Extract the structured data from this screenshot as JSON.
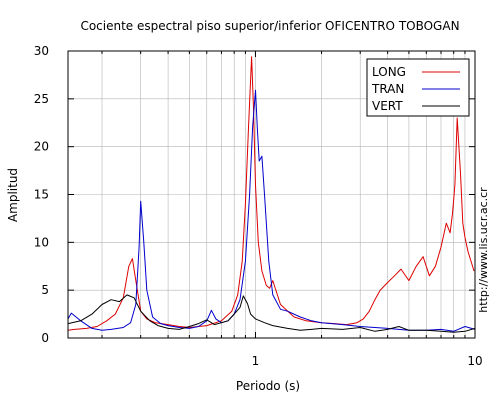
{
  "chart_data": {
    "type": "line",
    "title": "Cociente espectral piso superior/inferior OFICENTRO TOBOGAN",
    "xlabel": "Periodo (s)",
    "ylabel": "Amplitud",
    "x_scale": "log",
    "xlim": [
      0.14,
      10
    ],
    "ylim": [
      0,
      30
    ],
    "x_tick_labels": [
      {
        "value": 1,
        "label": "1"
      },
      {
        "value": 10,
        "label": "10"
      }
    ],
    "y_ticks": [
      0,
      5,
      10,
      15,
      20,
      25,
      30
    ],
    "grid": true,
    "legend_position": "top-right",
    "side_note": "http://www.lis.ucr.ac.cr",
    "series": [
      {
        "name": "LONG",
        "color": "#dd0000",
        "x": [
          0.14,
          0.15,
          0.17,
          0.19,
          0.21,
          0.23,
          0.25,
          0.265,
          0.275,
          0.285,
          0.3,
          0.32,
          0.35,
          0.4,
          0.45,
          0.5,
          0.6,
          0.7,
          0.78,
          0.83,
          0.87,
          0.9,
          0.93,
          0.96,
          0.98,
          1.0,
          1.03,
          1.07,
          1.12,
          1.16,
          1.2,
          1.3,
          1.5,
          1.7,
          2.0,
          2.3,
          2.6,
          2.9,
          3.1,
          3.3,
          3.5,
          3.7,
          4.0,
          4.3,
          4.6,
          5.0,
          5.4,
          5.8,
          6.2,
          6.6,
          7.0,
          7.4,
          7.7,
          7.9,
          8.1,
          8.3,
          8.45,
          8.6,
          8.8,
          9.0,
          9.3,
          9.6,
          9.9
        ],
        "y": [
          0.8,
          0.9,
          1.0,
          1.2,
          1.8,
          2.5,
          4.2,
          7.5,
          8.3,
          6.0,
          2.8,
          2.0,
          1.6,
          1.4,
          1.2,
          1.1,
          1.3,
          1.8,
          2.8,
          4.5,
          8.0,
          14.0,
          22.0,
          29.4,
          24.0,
          16.0,
          10.0,
          7.0,
          5.5,
          5.2,
          6.0,
          3.5,
          2.2,
          1.8,
          1.6,
          1.5,
          1.4,
          1.6,
          2.0,
          2.8,
          4.0,
          5.0,
          5.8,
          6.5,
          7.2,
          6.0,
          7.5,
          8.5,
          6.5,
          7.5,
          9.5,
          12.0,
          11.0,
          13.0,
          16.0,
          23.0,
          20.0,
          17.0,
          12.0,
          10.5,
          9.0,
          8.0,
          7.0
        ]
      },
      {
        "name": "TRAN",
        "color": "#0000cc",
        "x": [
          0.14,
          0.145,
          0.16,
          0.18,
          0.2,
          0.22,
          0.25,
          0.27,
          0.285,
          0.295,
          0.3,
          0.31,
          0.32,
          0.34,
          0.37,
          0.4,
          0.45,
          0.5,
          0.55,
          0.6,
          0.63,
          0.66,
          0.7,
          0.75,
          0.8,
          0.85,
          0.9,
          0.94,
          0.97,
          1.0,
          1.02,
          1.04,
          1.07,
          1.1,
          1.15,
          1.2,
          1.3,
          1.4,
          1.6,
          1.8,
          2.0,
          2.5,
          3.0,
          3.5,
          4.0,
          5.0,
          6.0,
          7.0,
          8.0,
          9.0,
          10.0
        ],
        "y": [
          2.0,
          2.6,
          1.8,
          1.0,
          0.8,
          0.9,
          1.1,
          1.6,
          3.5,
          9.5,
          14.3,
          10.0,
          5.0,
          2.2,
          1.5,
          1.3,
          1.1,
          1.0,
          1.2,
          1.8,
          2.9,
          2.0,
          1.6,
          1.8,
          2.5,
          4.0,
          8.0,
          15.0,
          22.0,
          25.9,
          22.0,
          18.5,
          19.0,
          15.0,
          8.0,
          4.5,
          3.0,
          2.8,
          2.2,
          1.8,
          1.6,
          1.4,
          1.2,
          1.1,
          1.0,
          0.8,
          0.8,
          0.9,
          0.7,
          1.2,
          0.9
        ]
      },
      {
        "name": "VERT",
        "color": "#000000",
        "x": [
          0.14,
          0.16,
          0.18,
          0.2,
          0.22,
          0.24,
          0.26,
          0.28,
          0.3,
          0.33,
          0.36,
          0.4,
          0.45,
          0.5,
          0.55,
          0.6,
          0.65,
          0.7,
          0.75,
          0.8,
          0.85,
          0.88,
          0.92,
          0.95,
          1.0,
          1.1,
          1.2,
          1.4,
          1.6,
          1.8,
          2.0,
          2.5,
          3.0,
          3.5,
          4.0,
          4.5,
          5.0,
          6.0,
          7.0,
          8.0,
          9.0,
          10.0
        ],
        "y": [
          1.5,
          1.8,
          2.5,
          3.5,
          4.0,
          3.8,
          4.5,
          4.2,
          2.8,
          1.8,
          1.3,
          1.0,
          0.9,
          1.2,
          1.5,
          1.9,
          1.4,
          1.6,
          1.8,
          2.5,
          3.2,
          4.4,
          3.6,
          2.5,
          2.0,
          1.6,
          1.3,
          1.0,
          0.8,
          0.9,
          1.0,
          0.9,
          1.1,
          0.7,
          0.9,
          1.2,
          0.8,
          0.8,
          0.7,
          0.6,
          0.7,
          1.0
        ]
      }
    ]
  }
}
